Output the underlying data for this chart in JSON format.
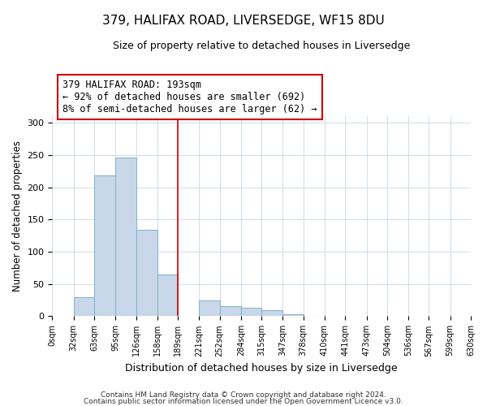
{
  "title": "379, HALIFAX ROAD, LIVERSEDGE, WF15 8DU",
  "subtitle": "Size of property relative to detached houses in Liversedge",
  "xlabel": "Distribution of detached houses by size in Liversedge",
  "ylabel": "Number of detached properties",
  "bin_labels": [
    "0sqm",
    "32sqm",
    "63sqm",
    "95sqm",
    "126sqm",
    "158sqm",
    "189sqm",
    "221sqm",
    "252sqm",
    "284sqm",
    "315sqm",
    "347sqm",
    "378sqm",
    "410sqm",
    "441sqm",
    "473sqm",
    "504sqm",
    "536sqm",
    "567sqm",
    "599sqm",
    "630sqm"
  ],
  "bar_heights": [
    0,
    30,
    218,
    246,
    134,
    65,
    0,
    24,
    16,
    13,
    9,
    3,
    1,
    0,
    0,
    0,
    0,
    0,
    0,
    0,
    0
  ],
  "bar_color": "#c8d8ea",
  "bar_edge_color": "#8ab4cc",
  "ylim": [
    0,
    310
  ],
  "yticks": [
    0,
    50,
    100,
    150,
    200,
    250,
    300
  ],
  "bin_edges": [
    0,
    32,
    63,
    95,
    126,
    158,
    189,
    221,
    252,
    284,
    315,
    347,
    378,
    410,
    441,
    473,
    504,
    536,
    567,
    599,
    630
  ],
  "property_line_x": 189,
  "annotation_title": "379 HALIFAX ROAD: 193sqm",
  "annotation_line1": "← 92% of detached houses are smaller (692)",
  "annotation_line2": "8% of semi-detached houses are larger (62) →",
  "annotation_box_color": "#cc0000",
  "vline_color": "#cc0000",
  "footer1": "Contains HM Land Registry data © Crown copyright and database right 2024.",
  "footer2": "Contains public sector information licensed under the Open Government Licence v3.0.",
  "grid_color": "#d0dce8",
  "title_fontsize": 11,
  "subtitle_fontsize": 9
}
